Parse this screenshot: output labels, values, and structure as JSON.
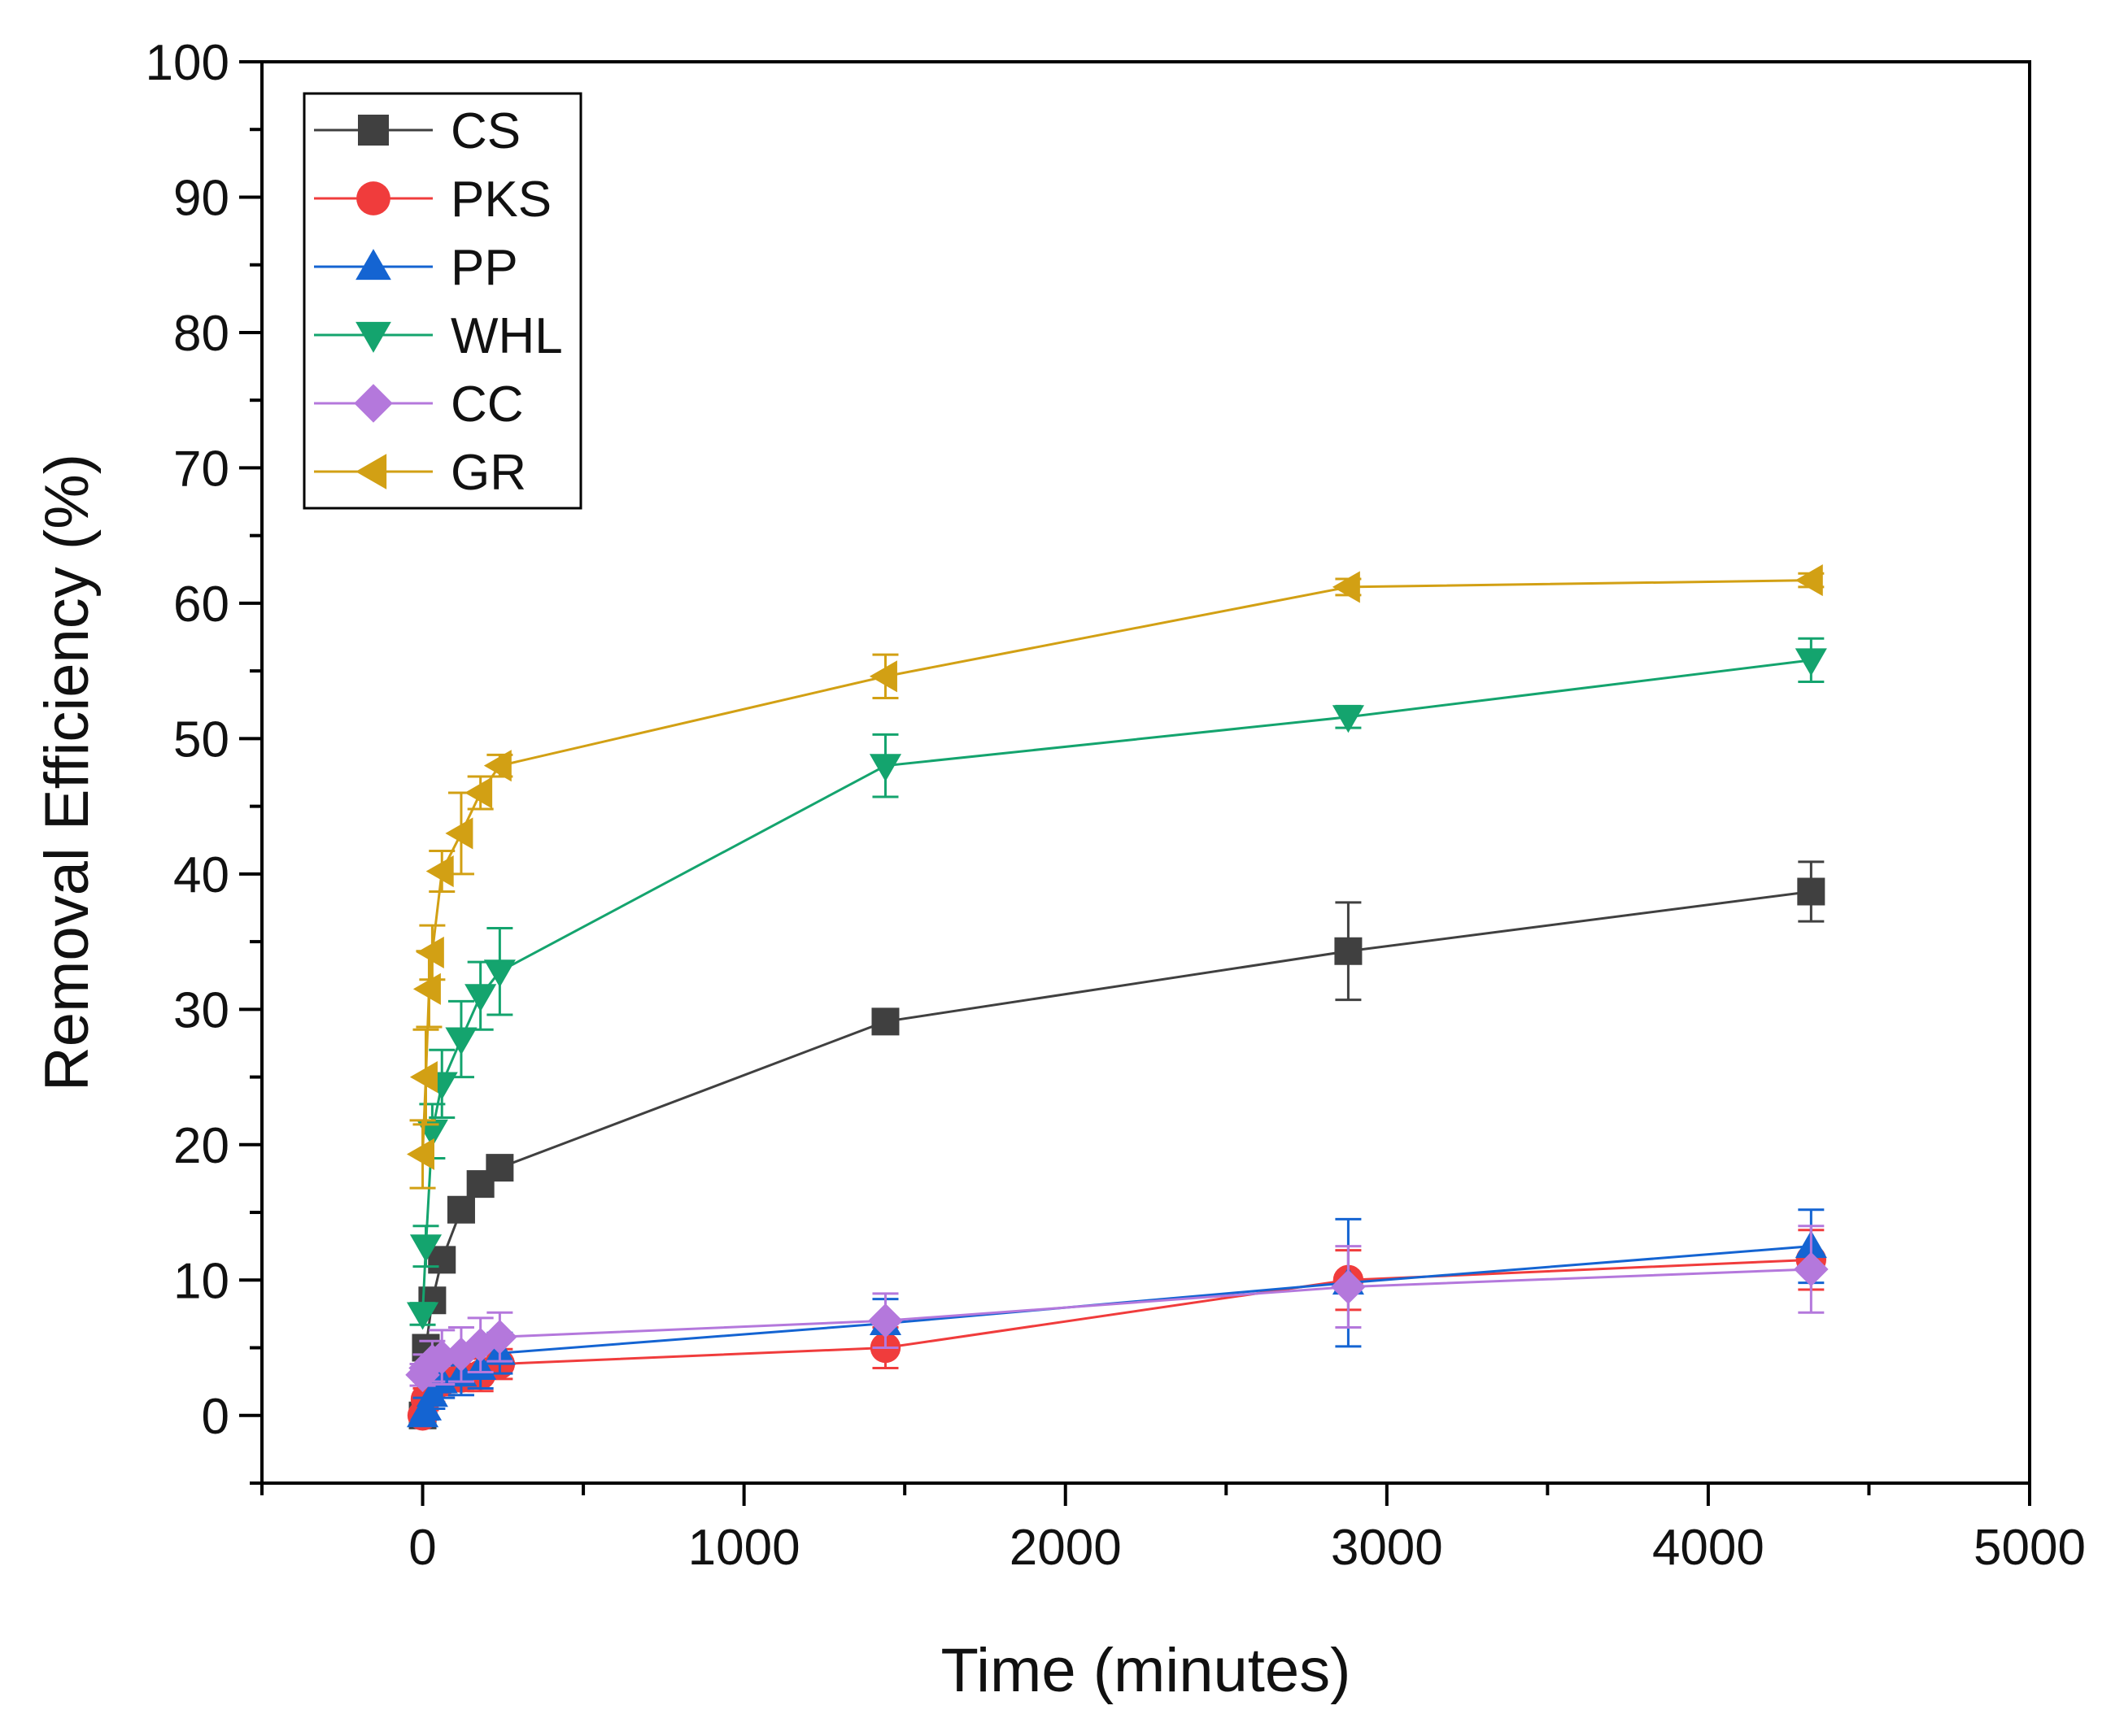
{
  "chart_data": {
    "type": "line",
    "title": "",
    "xlabel": "Time (minutes)",
    "ylabel": "Removal Efficiency (%)",
    "xlim": [
      -500,
      5000
    ],
    "ylim": [
      -5,
      100
    ],
    "xticks": [
      0,
      1000,
      2000,
      3000,
      4000,
      5000
    ],
    "xtick_labels": [
      "0",
      "1000",
      "2000",
      "3000",
      "4000",
      "5000"
    ],
    "yticks": [
      0,
      10,
      20,
      30,
      40,
      50,
      60,
      70,
      80,
      90,
      100
    ],
    "ytick_labels": [
      "0",
      "10",
      "20",
      "30",
      "40",
      "50",
      "60",
      "70",
      "80",
      "90",
      "100"
    ],
    "legend_position": "top-left",
    "series": [
      {
        "name": "CS",
        "color": "#404040",
        "marker": "square",
        "x": [
          0,
          10,
          30,
          60,
          120,
          180,
          240,
          1440,
          2880,
          4320
        ],
        "y": [
          0,
          5,
          8.5,
          11.5,
          15.2,
          17.1,
          18.3,
          29.1,
          34.3,
          38.7
        ],
        "err": [
          0,
          0.6,
          0.8,
          0.9,
          0.8,
          0.7,
          0.8,
          0.6,
          3.6,
          2.2
        ]
      },
      {
        "name": "PKS",
        "color": "#f03c3c",
        "marker": "circle",
        "x": [
          0,
          10,
          30,
          60,
          120,
          180,
          240,
          1440,
          2880,
          4320
        ],
        "y": [
          0,
          1.2,
          2.0,
          2.5,
          2.8,
          3.0,
          3.8,
          5.0,
          10.0,
          11.5
        ],
        "err": [
          0,
          0.8,
          1.0,
          1.0,
          1.0,
          1.2,
          1.1,
          1.5,
          2.2,
          2.2
        ]
      },
      {
        "name": "PP",
        "color": "#1464d2",
        "marker": "triangle-up",
        "x": [
          0,
          10,
          30,
          60,
          120,
          180,
          240,
          1440,
          2880,
          4320
        ],
        "y": [
          0,
          0.5,
          1.5,
          2.5,
          3.0,
          3.5,
          4.6,
          6.8,
          9.8,
          12.5
        ],
        "err": [
          0,
          0.8,
          1.0,
          1.2,
          1.5,
          1.5,
          1.5,
          1.8,
          4.7,
          2.7
        ]
      },
      {
        "name": "WHL",
        "color": "#14a46e",
        "marker": "triangle-down",
        "x": [
          0,
          10,
          30,
          60,
          120,
          180,
          240,
          1440,
          2880,
          4320
        ],
        "y": [
          7.5,
          12.5,
          21,
          24.5,
          27.8,
          31,
          32.8,
          48,
          51.6,
          55.8
        ],
        "err": [
          0.8,
          1.5,
          2.0,
          2.5,
          2.8,
          2.5,
          3.2,
          2.3,
          0.8,
          1.6
        ]
      },
      {
        "name": "CC",
        "color": "#b478dc",
        "marker": "diamond",
        "x": [
          0,
          10,
          30,
          60,
          120,
          180,
          240,
          1440,
          2880,
          4320
        ],
        "y": [
          3.0,
          3.5,
          4.0,
          4.3,
          4.5,
          5.2,
          5.8,
          7.0,
          9.5,
          10.8
        ],
        "err": [
          0.8,
          1.0,
          1.5,
          2.0,
          2.0,
          2.0,
          1.8,
          2.0,
          3.0,
          3.2
        ]
      },
      {
        "name": "GR",
        "color": "#d2a014",
        "marker": "triangle-left",
        "x": [
          0,
          10,
          20,
          30,
          60,
          120,
          180,
          240,
          1440,
          2880,
          4320
        ],
        "y": [
          19.3,
          25,
          31.5,
          34.2,
          40.2,
          43.0,
          46.0,
          48.0,
          54.6,
          61.2,
          61.7
        ],
        "err": [
          2.5,
          3.5,
          2.8,
          2.0,
          1.5,
          3.0,
          1.2,
          0.8,
          1.6,
          0.6,
          0.5
        ]
      }
    ]
  }
}
